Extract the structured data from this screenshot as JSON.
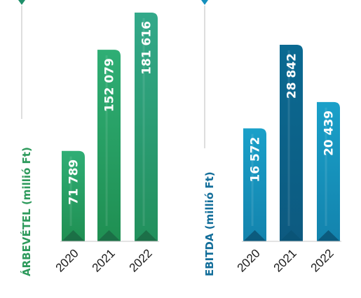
{
  "chart_data": [
    {
      "type": "bar",
      "ylabel": "ÁRBEVÉTEL (millió Ft)",
      "categories": [
        "2020",
        "2021",
        "2022"
      ],
      "values": [
        71789,
        152079,
        181616
      ],
      "value_labels": [
        "71 789",
        "152 079",
        "181 616"
      ],
      "ylim": [
        0,
        181616
      ],
      "grid": false,
      "colors": {
        "bar_top": "#2fa565",
        "bar_bottom": "#1f8f52",
        "accent_dark": "#1b6a44",
        "axis": "#c8c8c8",
        "title": "#2e9a5c",
        "marker": "#1f8f6a"
      }
    },
    {
      "type": "bar",
      "ylabel": "EBITDA (millió Ft)",
      "categories": [
        "2020",
        "2021",
        "2022"
      ],
      "values": [
        16572,
        28842,
        20439
      ],
      "value_labels": [
        "16 572",
        "28 842",
        "20 439"
      ],
      "ylim": [
        0,
        28842
      ],
      "grid": false,
      "colors": {
        "bar_top": "#1a97c4",
        "bar_bottom": "#1485b0",
        "bar_highlight_top": "#0e6d96",
        "bar_highlight_bottom": "#0c5c82",
        "accent_dark": "#0b5476",
        "axis": "#c8c8c8",
        "title": "#136e9a",
        "marker": "#1590bd"
      }
    }
  ]
}
